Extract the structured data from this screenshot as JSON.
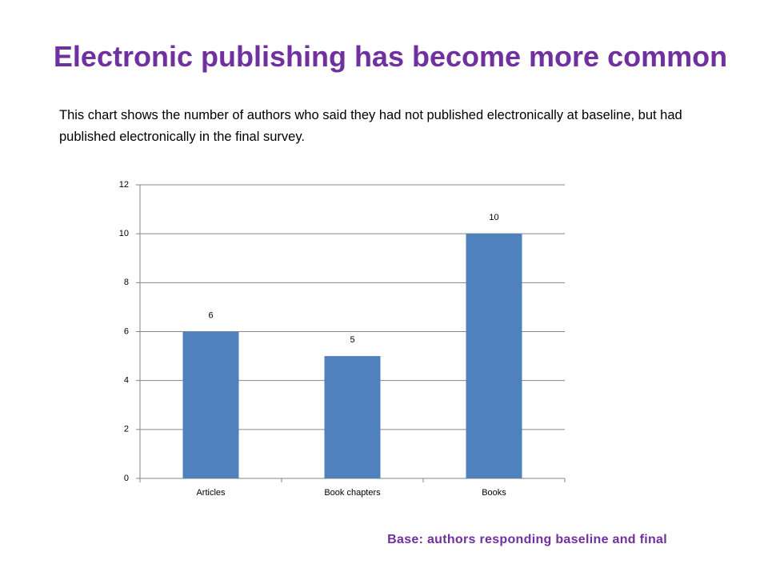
{
  "chart_data": {
    "type": "bar",
    "title": "Electronic publishing has become more common",
    "subtitle": "This chart shows the number of authors who said they had not published electronically at baseline, but had published electronically in the final survey.",
    "note": "Base: authors responding baseline and final",
    "categories": [
      "Articles",
      "Book chapters",
      "Books"
    ],
    "values": [
      6,
      5,
      10
    ],
    "color": "#4f81bd",
    "ylim": [
      0,
      12
    ],
    "yticks": [
      0,
      2,
      4,
      6,
      8,
      10,
      12
    ],
    "grid": true,
    "data_labels": true
  }
}
